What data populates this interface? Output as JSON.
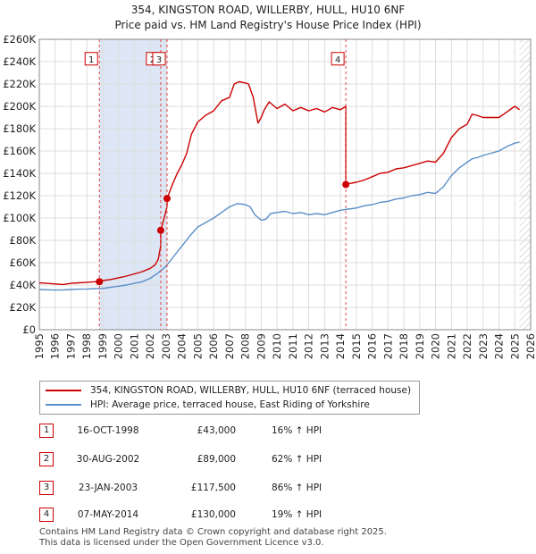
{
  "title_line1": "354, KINGSTON ROAD, WILLERBY, HULL, HU10 6NF",
  "title_line2": "Price paid vs. HM Land Registry's House Price Index (HPI)",
  "chart_data": {
    "type": "line",
    "title": "354, KINGSTON ROAD, WILLERBY, HULL, HU10 6NF",
    "subtitle": "Price paid vs. HM Land Registry's House Price Index (HPI)",
    "xlim": [
      1995,
      2026
    ],
    "ylim": [
      0,
      260000
    ],
    "y_ticks": [
      0,
      20000,
      40000,
      60000,
      80000,
      100000,
      120000,
      140000,
      160000,
      180000,
      200000,
      220000,
      240000,
      260000
    ],
    "y_tick_labels": [
      "£0",
      "£20K",
      "£40K",
      "£60K",
      "£80K",
      "£100K",
      "£120K",
      "£140K",
      "£160K",
      "£180K",
      "£200K",
      "£220K",
      "£240K",
      "£260K"
    ],
    "x_ticks": [
      1995,
      1996,
      1997,
      1998,
      1999,
      2000,
      2001,
      2002,
      2003,
      2004,
      2005,
      2006,
      2007,
      2008,
      2009,
      2010,
      2011,
      2012,
      2013,
      2014,
      2015,
      2016,
      2017,
      2018,
      2019,
      2020,
      2021,
      2022,
      2023,
      2024,
      2025,
      2026
    ],
    "grid": true,
    "colors": {
      "property": "#cc0000",
      "hpi": "#5b8fc9",
      "shade": "#dde6f5",
      "grid": "#dddddd",
      "vline": "#dd4444"
    },
    "shaded_ranges": [
      [
        1998.79,
        2003.06
      ]
    ],
    "hatch_from": 2025.3,
    "series": [
      {
        "name": "354, KINGSTON ROAD, WILLERBY, HULL, HU10 6NF (terraced house)",
        "color": "#cc0000",
        "x": [
          1995,
          1995.5,
          1996,
          1996.5,
          1997,
          1997.5,
          1998,
          1998.5,
          1998.79,
          1999,
          1999.5,
          2000,
          2000.5,
          2001,
          2001.5,
          2002,
          2002.3,
          2002.5,
          2002.66,
          2002.66,
          2002.8,
          2003.06,
          2003.06,
          2003.4,
          2003.7,
          2004,
          2004.3,
          2004.6,
          2005,
          2005.5,
          2006,
          2006.5,
          2007,
          2007.3,
          2007.6,
          2008,
          2008.2,
          2008.5,
          2008.8,
          2009,
          2009.2,
          2009.5,
          2010,
          2010.5,
          2011,
          2011.5,
          2012,
          2012.5,
          2013,
          2013.5,
          2014,
          2014.34,
          2014.34,
          2014.6,
          2015,
          2015.5,
          2016,
          2016.5,
          2017,
          2017.5,
          2018,
          2018.5,
          2019,
          2019.5,
          2020,
          2020.5,
          2021,
          2021.5,
          2022,
          2022.3,
          2022.6,
          2023,
          2023.5,
          2024,
          2024.5,
          2024.8,
          2025,
          2025.3
        ],
        "values": [
          42000,
          41500,
          41000,
          40500,
          41500,
          42000,
          42500,
          43000,
          43000,
          44000,
          45000,
          46500,
          48000,
          50000,
          52000,
          55000,
          58000,
          63000,
          75000,
          89000,
          96000,
          110000,
          117500,
          130000,
          140000,
          148000,
          158000,
          175000,
          186000,
          192000,
          196000,
          205000,
          208000,
          220000,
          222000,
          221000,
          220000,
          208000,
          185000,
          190000,
          197000,
          204000,
          198000,
          202000,
          196000,
          199000,
          196000,
          198000,
          195000,
          199000,
          197000,
          200000,
          130000,
          131000,
          132000,
          134000,
          137000,
          140000,
          141000,
          144000,
          145000,
          147000,
          149000,
          151000,
          150000,
          158000,
          172000,
          180000,
          184000,
          193000,
          192000,
          190000,
          190000,
          190000,
          195000,
          198000,
          200000,
          197000
        ]
      },
      {
        "name": "HPI: Average price, terraced house, East Riding of Yorkshire",
        "color": "#5b8fc9",
        "x": [
          1995,
          1995.5,
          1996,
          1996.5,
          1997,
          1997.5,
          1998,
          1998.5,
          1999,
          1999.5,
          2000,
          2000.5,
          2001,
          2001.5,
          2002,
          2002.5,
          2003,
          2003.5,
          2004,
          2004.5,
          2005,
          2005.5,
          2006,
          2006.5,
          2007,
          2007.5,
          2008,
          2008.3,
          2008.6,
          2009,
          2009.3,
          2009.6,
          2010,
          2010.5,
          2011,
          2011.5,
          2012,
          2012.5,
          2013,
          2013.5,
          2014,
          2014.5,
          2015,
          2015.5,
          2016,
          2016.5,
          2017,
          2017.5,
          2018,
          2018.5,
          2019,
          2019.5,
          2020,
          2020.5,
          2021,
          2021.5,
          2022,
          2022.3,
          2022.6,
          2023,
          2023.5,
          2024,
          2024.5,
          2025,
          2025.3
        ],
        "values": [
          36000,
          35800,
          35500,
          35700,
          36000,
          36300,
          36500,
          36800,
          37000,
          38000,
          39000,
          40000,
          41500,
          43000,
          46000,
          51000,
          57000,
          66000,
          75000,
          84000,
          92000,
          96000,
          100000,
          105000,
          110000,
          113000,
          112000,
          110000,
          103000,
          98000,
          99000,
          104000,
          105000,
          106000,
          104000,
          105000,
          103000,
          104000,
          103000,
          105000,
          107000,
          108000,
          109000,
          111000,
          112000,
          114000,
          115000,
          117000,
          118000,
          120000,
          121000,
          123000,
          122000,
          128000,
          138000,
          145000,
          150000,
          153000,
          154000,
          156000,
          158000,
          160000,
          164000,
          167000,
          168000
        ]
      }
    ],
    "markers": [
      {
        "label": "1",
        "x": 1998.79,
        "y": 43000,
        "label_y": 237000
      },
      {
        "label": "2",
        "x": 2002.66,
        "y": 89000,
        "label_y": 237000
      },
      {
        "label": "3",
        "x": 2003.06,
        "y": 117500,
        "label_y": 237000
      },
      {
        "label": "4",
        "x": 2014.34,
        "y": 130000,
        "label_y": 237000
      }
    ]
  },
  "legend": {
    "property_label": "354, KINGSTON ROAD, WILLERBY, HULL, HU10 6NF (terraced house)",
    "hpi_label": "HPI: Average price, terraced house, East Riding of Yorkshire"
  },
  "sales": [
    {
      "num": "1",
      "date": "16-OCT-1998",
      "price": "£43,000",
      "hpi": "16% ↑ HPI"
    },
    {
      "num": "2",
      "date": "30-AUG-2002",
      "price": "£89,000",
      "hpi": "62% ↑ HPI"
    },
    {
      "num": "3",
      "date": "23-JAN-2003",
      "price": "£117,500",
      "hpi": "86% ↑ HPI"
    },
    {
      "num": "4",
      "date": "07-MAY-2014",
      "price": "£130,000",
      "hpi": "19% ↑ HPI"
    }
  ],
  "footer_line1": "Contains HM Land Registry data © Crown copyright and database right 2025.",
  "footer_line2": "This data is licensed under the Open Government Licence v3.0."
}
